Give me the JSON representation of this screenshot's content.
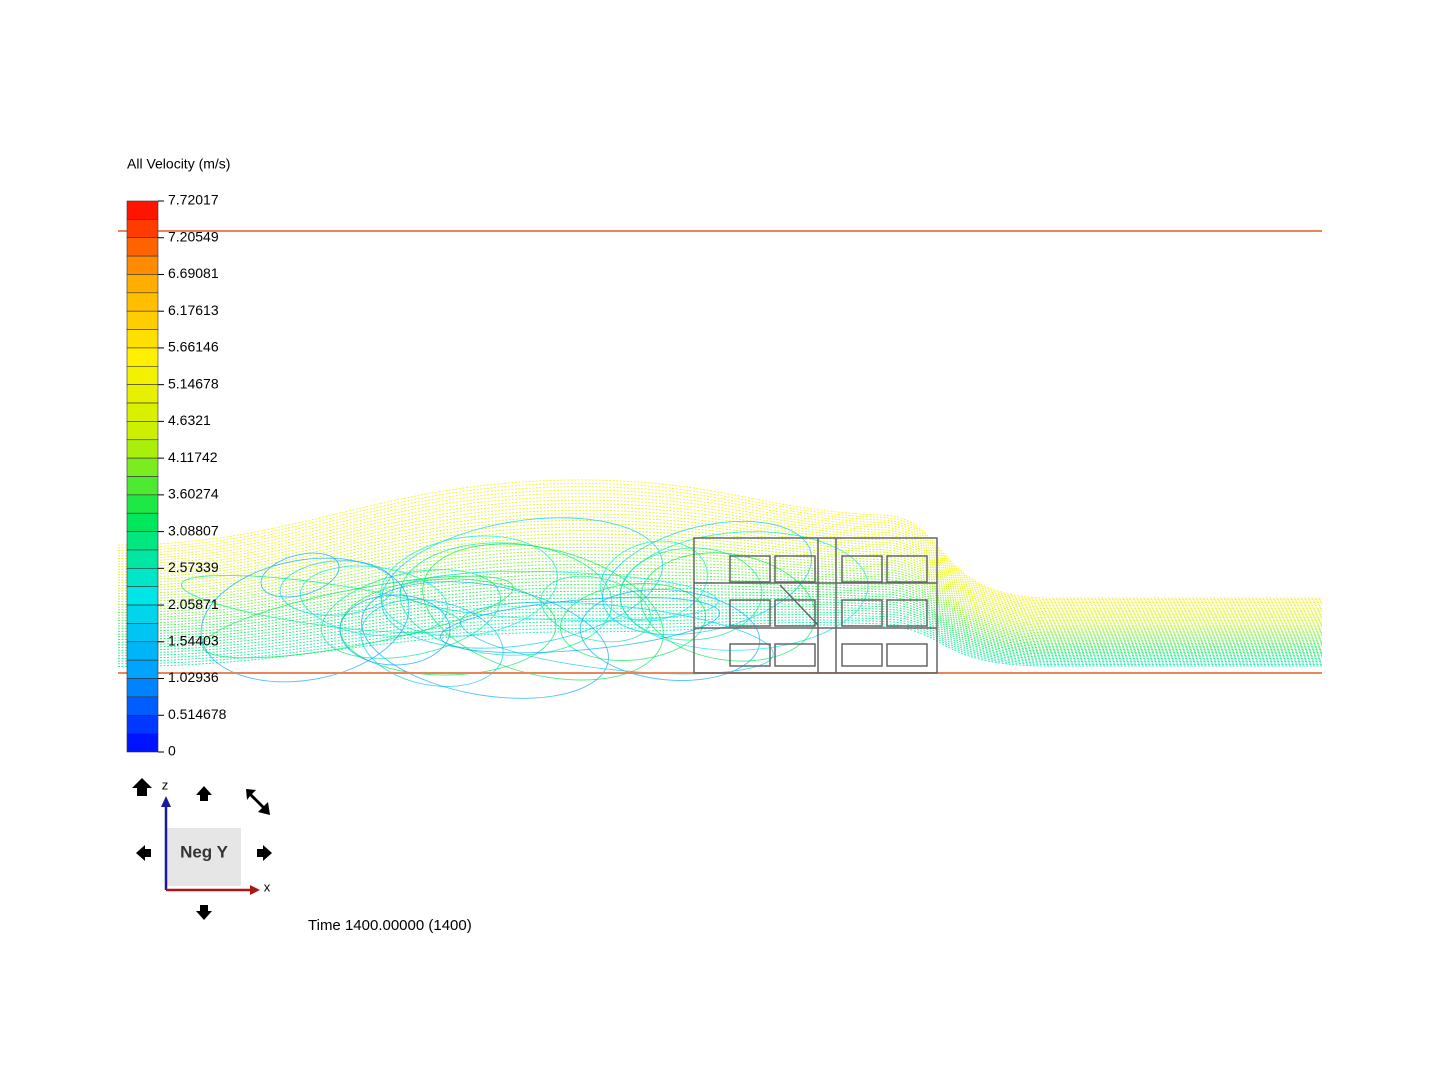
{
  "legend": {
    "title": "All Velocity (m/s)",
    "labels": [
      "7.72017",
      "7.20549",
      "6.69081",
      "6.17613",
      "5.66146",
      "5.14678",
      "4.6321",
      "4.11742",
      "3.60274",
      "3.08807",
      "2.57339",
      "2.05871",
      "1.54403",
      "1.02936",
      "0.514678",
      "0"
    ]
  },
  "view_cube": {
    "label": "Neg Y",
    "axis_z": "z",
    "axis_x": "x"
  },
  "time": "Time 1400.00000 (1400)"
}
